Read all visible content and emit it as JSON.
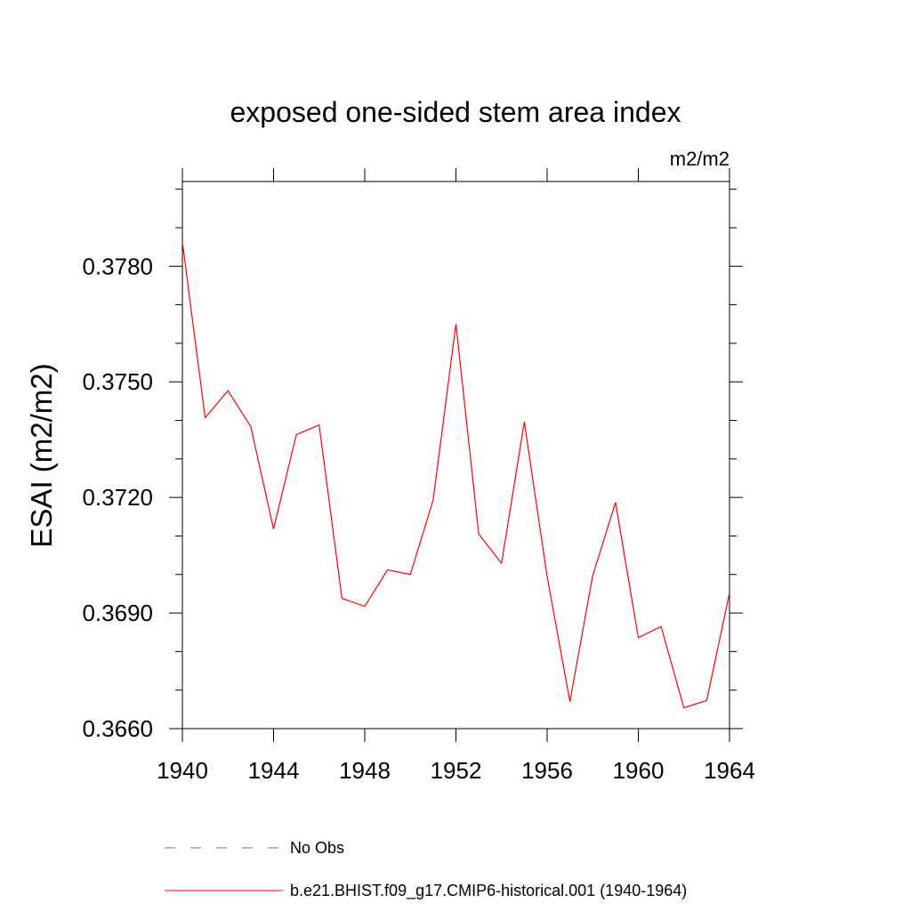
{
  "chart_data": {
    "type": "line",
    "title": "exposed one-sided stem area index",
    "units_label": "m2/m2",
    "ylabel": "ESAI  (m2/m2)",
    "xlabel": "",
    "xlim": [
      1940,
      1964
    ],
    "ylim": [
      0.366,
      0.3802
    ],
    "x_ticks": [
      1940,
      1944,
      1948,
      1952,
      1956,
      1960,
      1964
    ],
    "x_tick_labels": [
      "1940",
      "1944",
      "1948",
      "1952",
      "1956",
      "1960",
      "1964"
    ],
    "y_ticks": [
      0.366,
      0.369,
      0.372,
      0.375,
      0.378
    ],
    "y_tick_labels": [
      "0.3660",
      "0.3690",
      "0.3720",
      "0.3750",
      "0.3780"
    ],
    "series": [
      {
        "name": "b.e21.BHIST.f09_g17.CMIP6-historical.001 (1940-1964)",
        "color": "#ff0000",
        "style": "solid",
        "x": [
          1940,
          1941,
          1942,
          1943,
          1944,
          1945,
          1946,
          1947,
          1948,
          1949,
          1950,
          1951,
          1952,
          1953,
          1954,
          1955,
          1956,
          1957,
          1958,
          1959,
          1960,
          1961,
          1962,
          1963,
          1964
        ],
        "values": [
          0.37863,
          0.37407,
          0.37477,
          0.37384,
          0.37118,
          0.37363,
          0.37388,
          0.36938,
          0.36917,
          0.37012,
          0.37,
          0.37193,
          0.3765,
          0.37105,
          0.37029,
          0.37396,
          0.36995,
          0.3667,
          0.36997,
          0.37187,
          0.36836,
          0.36865,
          0.36654,
          0.36673,
          0.36952
        ]
      }
    ],
    "legend": [
      {
        "label": "No Obs",
        "color": "#6a6ab8",
        "style": "dashed"
      },
      {
        "label": "b.e21.BHIST.f09_g17.CMIP6-historical.001 (1940-1964)",
        "color": "#ff0000",
        "style": "solid"
      }
    ]
  }
}
